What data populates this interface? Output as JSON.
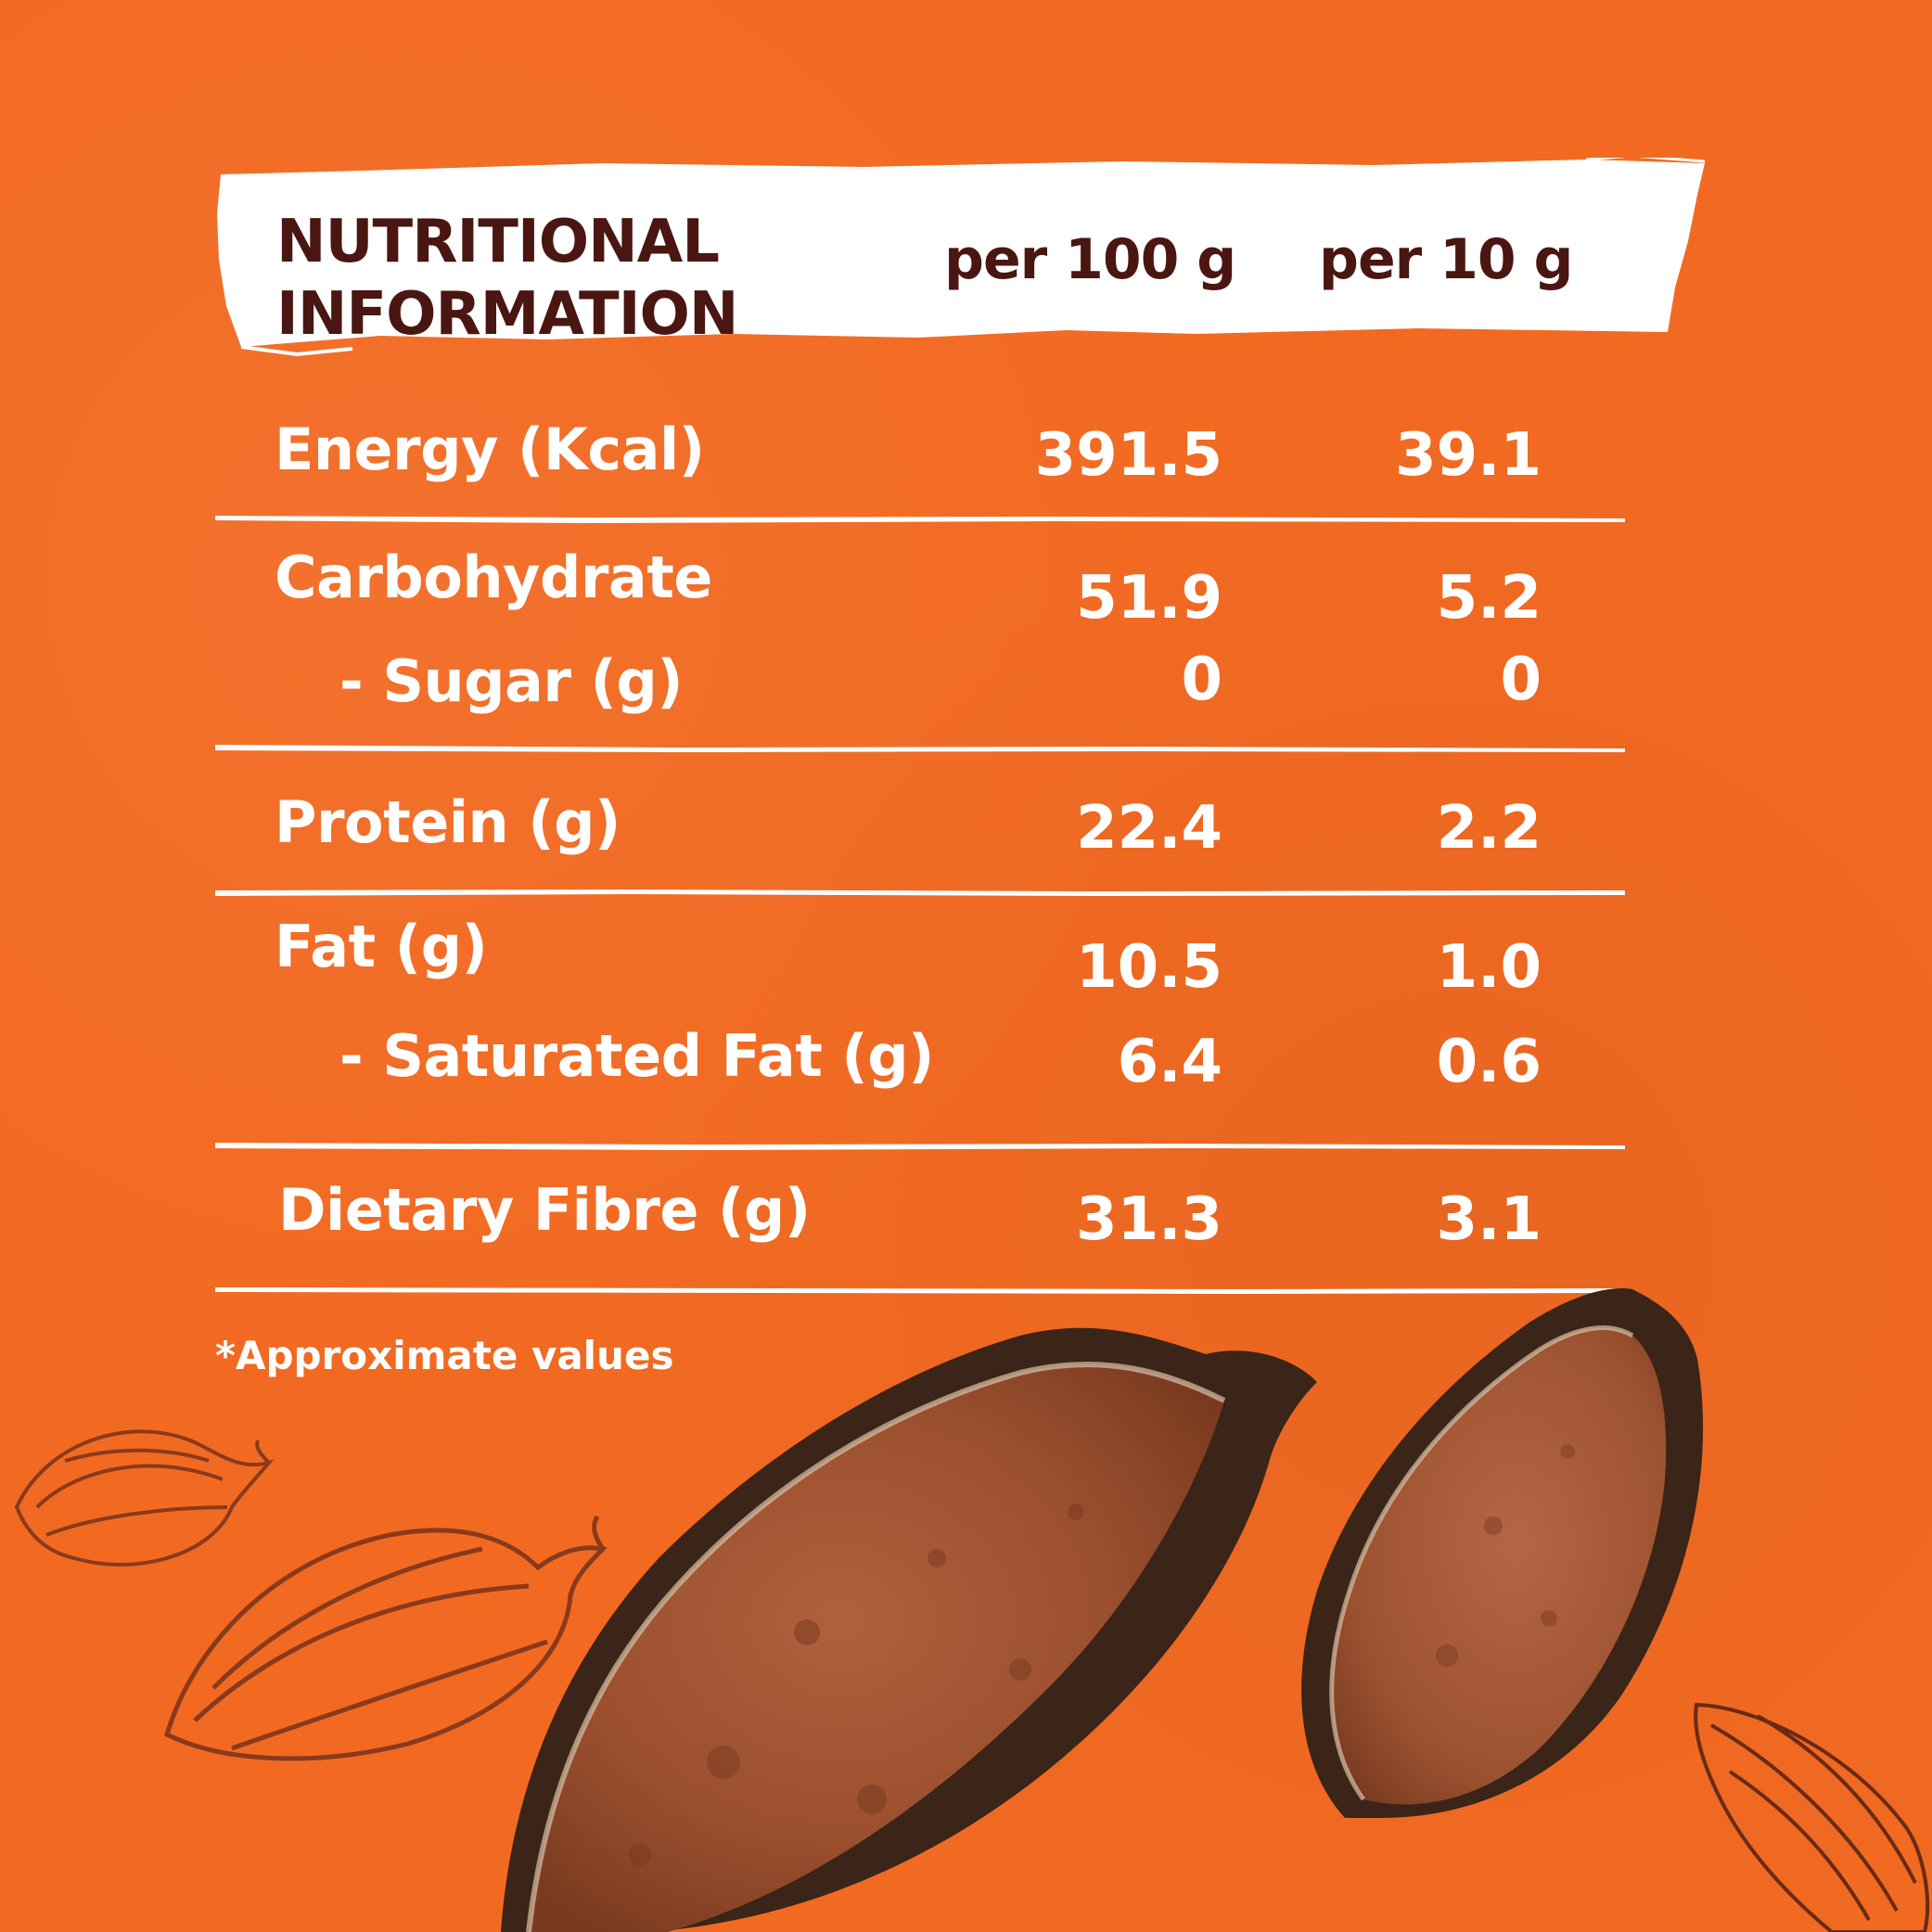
{
  "header": {
    "title_line1": "NUTRITIONAL",
    "title_line2": "INFORMATION",
    "col1": "per 100 g",
    "col2": "per 10 g"
  },
  "rows": [
    {
      "label": "Energy (Kcal)",
      "per100": "391.5",
      "per10": "39.1"
    },
    {
      "label": "Carbohydrate",
      "per100": "51.9",
      "per10": "5.2"
    },
    {
      "label": "- Sugar (g)",
      "per100": "0",
      "per10": "0"
    },
    {
      "label": "Protein (g)",
      "per100": "22.4",
      "per10": "2.2"
    },
    {
      "label": "Fat (g)",
      "per100": "10.5",
      "per10": "1.0"
    },
    {
      "label": "- Saturated Fat (g)",
      "per100": "6.4",
      "per10": "0.6"
    },
    {
      "label": "Dietary Fibre (g)",
      "per100": "31.3",
      "per10": "3.1"
    }
  ],
  "footnote": "*Approximate values",
  "colors": {
    "background": "#f26a22",
    "header_text": "#4a1612",
    "body_text": "#ffffff",
    "illustration": "#8a3a1c",
    "cocoa_powder": "#a0522d",
    "pod_shell": "#3b2418"
  }
}
